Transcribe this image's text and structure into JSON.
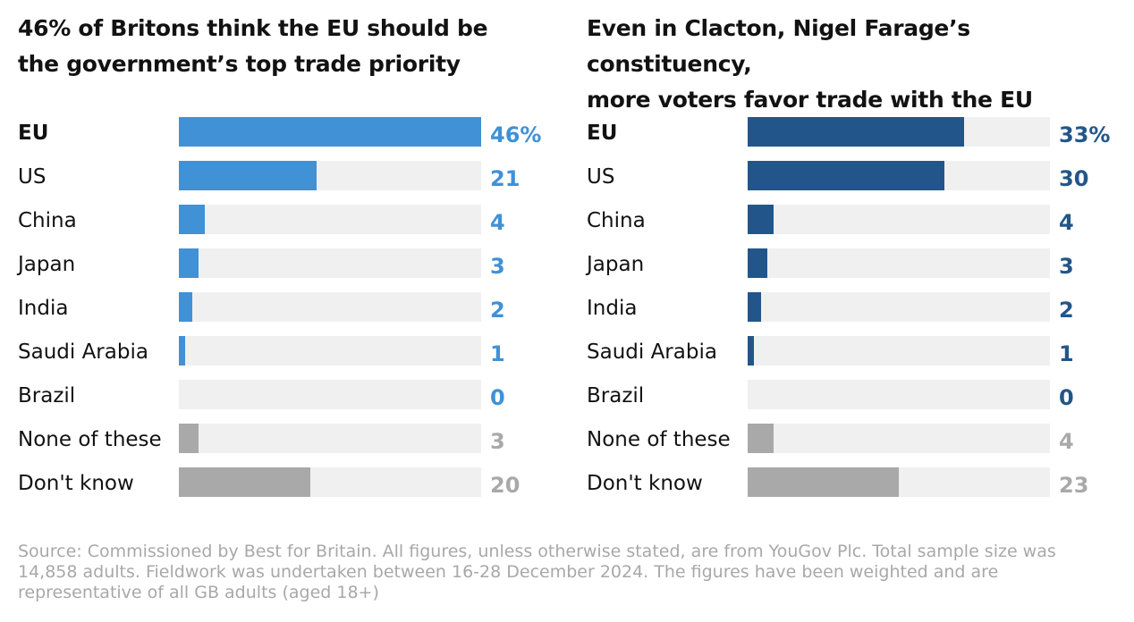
{
  "colors": {
    "left_accent": "#4091d6",
    "right_accent": "#22568a",
    "neutral": "#a9a9a9",
    "track": "#f0f0f0"
  },
  "chart_data": [
    {
      "type": "bar",
      "orientation": "horizontal",
      "title": "46% of Britons think the EU should be the government’s top trade priority",
      "title_lines": [
        "46% of Britons think the EU should be",
        "the government’s top trade priority"
      ],
      "xlim": [
        0,
        46
      ],
      "categories": [
        "EU",
        "US",
        "China",
        "Japan",
        "India",
        "Saudi Arabia",
        "Brazil",
        "None of these",
        "Don't know"
      ],
      "values": [
        46,
        21,
        4,
        3,
        2,
        1,
        0,
        3,
        20
      ],
      "value_labels": [
        "46%",
        "21",
        "4",
        "3",
        "2",
        "1",
        "0",
        "3",
        "20"
      ],
      "highlight_category": "EU",
      "neutral_categories": [
        "None of these",
        "Don't know"
      ]
    },
    {
      "type": "bar",
      "orientation": "horizontal",
      "title": "Even in Clacton, Nigel Farage’s constituency, more voters favor trade with the EU",
      "title_lines": [
        "Even in Clacton, Nigel Farage’s constituency,",
        "more voters favor trade with the EU"
      ],
      "xlim": [
        0,
        46
      ],
      "categories": [
        "EU",
        "US",
        "China",
        "Japan",
        "India",
        "Saudi Arabia",
        "Brazil",
        "None of these",
        "Don't know"
      ],
      "values": [
        33,
        30,
        4,
        3,
        2,
        1,
        0,
        4,
        23
      ],
      "value_labels": [
        "33%",
        "30",
        "4",
        "3",
        "2",
        "1",
        "0",
        "4",
        "23"
      ],
      "highlight_category": "EU",
      "neutral_categories": [
        "None of these",
        "Don't know"
      ]
    }
  ],
  "source": "Source: Commissioned by Best for Britain. All figures, unless otherwise stated, are from YouGov Plc. Total sample size was 14,858 adults. Fieldwork was undertaken between 16-28 December 2024. The figures have been weighted and are representative of all GB adults (aged 18+)"
}
